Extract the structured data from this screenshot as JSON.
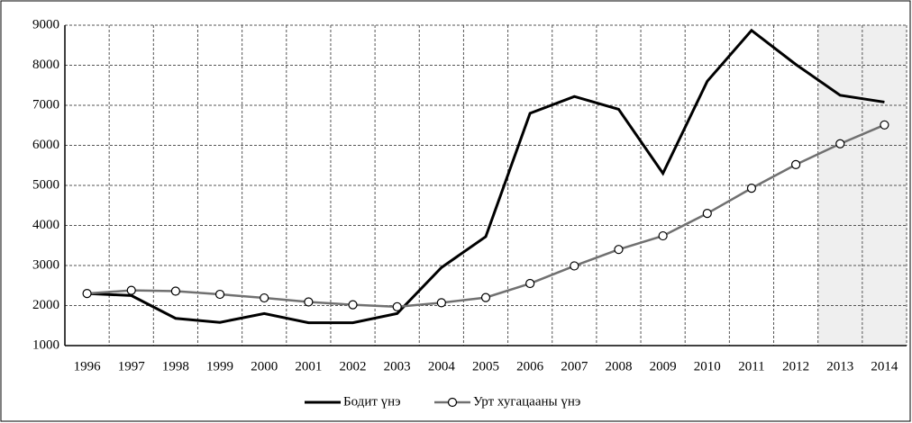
{
  "chart_data": {
    "type": "line",
    "categories": [
      "1996",
      "1997",
      "1998",
      "1999",
      "2000",
      "2001",
      "2002",
      "2003",
      "2004",
      "2005",
      "2006",
      "2007",
      "2008",
      "2009",
      "2010",
      "2011",
      "2012",
      "2013",
      "2014"
    ],
    "series": [
      {
        "name": "Бодит үнэ",
        "color": "#000000",
        "marker": "none",
        "values": [
          2300,
          2250,
          1680,
          1580,
          1800,
          1570,
          1570,
          1800,
          2950,
          3720,
          6800,
          7220,
          6900,
          5300,
          7600,
          8870,
          8020,
          7250,
          7080
        ]
      },
      {
        "name": "Урт хугацааны үнэ",
        "color": "#707070",
        "marker": "circle",
        "values": [
          2300,
          2380,
          2360,
          2280,
          2190,
          2090,
          2020,
          1970,
          2070,
          2200,
          2550,
          2990,
          3400,
          3740,
          4300,
          4930,
          5520,
          6040,
          6510
        ]
      }
    ],
    "ylim": [
      1000,
      9000
    ],
    "yticks": [
      1000,
      2000,
      3000,
      4000,
      5000,
      6000,
      7000,
      8000,
      9000
    ],
    "grid": true,
    "legend": "bottom",
    "shaded_region": {
      "from": "2013",
      "to": "2014",
      "color": "#efefef"
    }
  }
}
